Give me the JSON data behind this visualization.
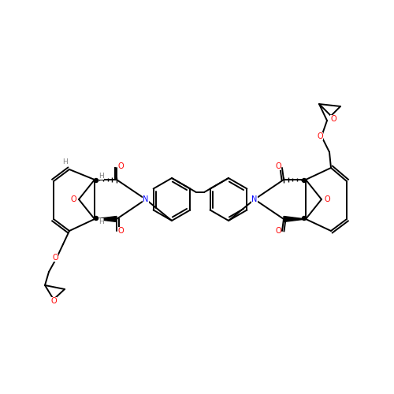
{
  "background_color": "#ffffff",
  "bond_color": "#000000",
  "atom_colors": {
    "O": "#ff0000",
    "N": "#0000ff",
    "H": "#808080",
    "C": "#000000"
  },
  "line_width": 1.4,
  "fig_size": [
    5.0,
    5.0
  ],
  "dpi": 100
}
